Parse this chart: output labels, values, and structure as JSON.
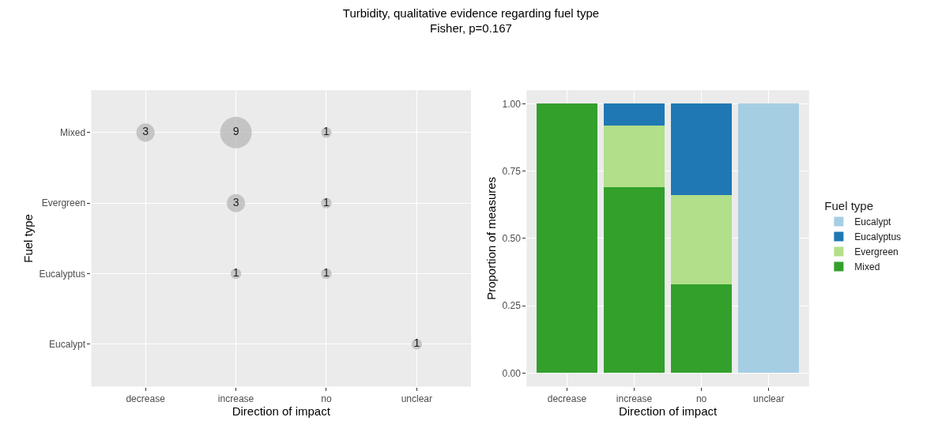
{
  "chart_data": [
    {
      "type": "heatmap",
      "title": "Turbidity, qualitative evidence regarding fuel type",
      "subtitle": "Fisher, p=0.167",
      "xlabel": "Direction of impact",
      "ylabel": "Fuel type",
      "categories": [
        "decrease",
        "increase",
        "no",
        "unclear"
      ],
      "y_categories": [
        "Mixed",
        "Evergreen",
        "Eucalyptus",
        "Eucalypt"
      ],
      "grid": true,
      "data_labels": true,
      "color": "#b3b3b3",
      "cells": [
        [
          3,
          9,
          1,
          null
        ],
        [
          null,
          3,
          1,
          null
        ],
        [
          null,
          1,
          1,
          null
        ],
        [
          null,
          null,
          null,
          1
        ]
      ]
    },
    {
      "type": "bar",
      "stacked": true,
      "xlabel": "Direction of impact",
      "ylabel": "Proportion of measures",
      "legend_title": "Fuel type",
      "legend": "right",
      "grid": true,
      "categories": [
        "decrease",
        "increase",
        "no",
        "unclear"
      ],
      "ylim": [
        -0.05,
        1.05
      ],
      "yticks": [
        {
          "value": 0,
          "label": "0.00"
        },
        {
          "value": 0.25,
          "label": "0.25"
        },
        {
          "value": 0.5,
          "label": "0.50"
        },
        {
          "value": 0.75,
          "label": "0.75"
        },
        {
          "value": 1,
          "label": "1.00"
        }
      ],
      "series": [
        {
          "name": "Mixed",
          "color": "#33a02c",
          "values": [
            1,
            0.69,
            0.33,
            null
          ]
        },
        {
          "name": "Evergreen",
          "color": "#b2df8a",
          "values": [
            null,
            0.23,
            0.33,
            null
          ]
        },
        {
          "name": "Eucalyptus",
          "color": "#1f78b4",
          "values": [
            null,
            0.08,
            0.34,
            null
          ]
        },
        {
          "name": "Eucalypt",
          "color": "#a6cee3",
          "values": [
            null,
            null,
            null,
            1
          ]
        }
      ]
    }
  ]
}
